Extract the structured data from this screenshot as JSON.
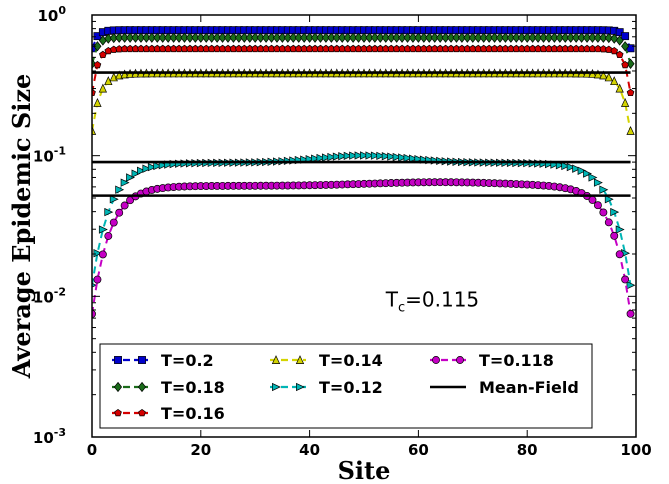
{
  "chart_data": {
    "type": "line",
    "xlabel": "Site",
    "ylabel": "Average  Epidemic  Size",
    "xlim": [
      0,
      100
    ],
    "ylim": [
      0.001,
      1
    ],
    "yscale": "log",
    "x_ticks": [
      "0",
      "20",
      "40",
      "60",
      "80",
      "100"
    ],
    "y_ticks": [
      {
        "base": "10",
        "exp": "-3"
      },
      {
        "base": "10",
        "exp": "-2"
      },
      {
        "base": "10",
        "exp": "-1"
      },
      {
        "base": "10",
        "exp": "0"
      }
    ],
    "annotation": {
      "main": "T",
      "sub": "c",
      "rest": "=0.115",
      "x": 54,
      "y": 0.0085
    },
    "legend_position": "lower-center",
    "series": [
      {
        "name": "T=0.2",
        "color": "#0000cc",
        "marker": "square",
        "plateau": 0.78,
        "edge": 0.58,
        "decay": 0.9
      },
      {
        "name": "T=0.18",
        "color": "#1a6b1a",
        "marker": "diamond",
        "plateau": 0.69,
        "edge": 0.45,
        "decay": 0.9
      },
      {
        "name": "T=0.16",
        "color": "#d40000",
        "marker": "pentagon",
        "plateau": 0.575,
        "edge": 0.28,
        "decay": 1.0
      },
      {
        "name": "T=0.14",
        "color": "#d4d400",
        "marker": "triangle-up",
        "plateau": 0.385,
        "edge": 0.15,
        "decay": 1.5
      },
      {
        "name": "T=0.12",
        "color": "#00b5b5",
        "marker": "triangle-right",
        "plateau": 0.089,
        "edge": 0.012,
        "decay": 3.3,
        "bump": {
          "center": 50,
          "width": 12,
          "amp": 0.12
        }
      },
      {
        "name": "T=0.118",
        "color": "#c400c4",
        "marker": "circle",
        "plateau": 0.061,
        "edge": 0.0075,
        "decay": 3.2,
        "bump": {
          "center": 64,
          "width": 18,
          "amp": 0.06
        }
      },
      {
        "name": "Mean-Field",
        "color": "#000000",
        "marker": "none",
        "lines": [
          {
            "y": 0.39
          },
          {
            "y": 0.09
          },
          {
            "y": 0.052
          }
        ]
      }
    ]
  }
}
